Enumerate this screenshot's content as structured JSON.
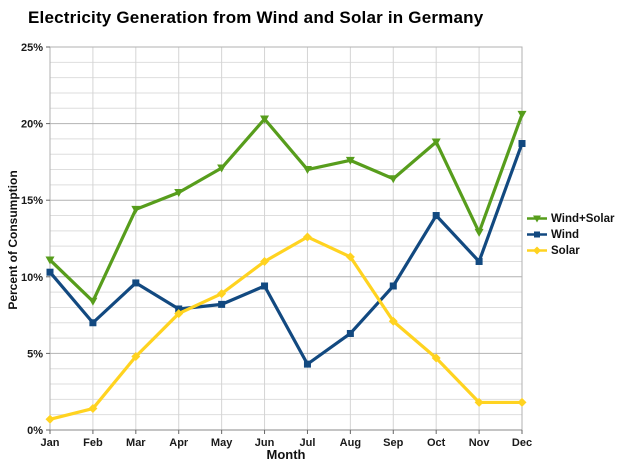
{
  "chart_data": {
    "type": "line",
    "title": "Electricity Generation from Wind and Solar in Germany",
    "xlabel": "Month",
    "ylabel": "Percent of Consumption",
    "categories": [
      "Jan",
      "Feb",
      "Mar",
      "Apr",
      "May",
      "Jun",
      "Jul",
      "Aug",
      "Sep",
      "Oct",
      "Nov",
      "Dec"
    ],
    "ylim": [
      0,
      25
    ],
    "y_major_step": 5,
    "y_minor_step": 1,
    "y_tick_labels": [
      "0%",
      "5%",
      "10%",
      "15%",
      "20%",
      "25%"
    ],
    "grid": true,
    "legend_position": "right",
    "series": [
      {
        "name": "Wind+Solar",
        "color": "#579D1C",
        "marker": "triangle-down",
        "values": [
          11.1,
          8.4,
          14.4,
          15.5,
          17.1,
          20.3,
          17.0,
          17.6,
          16.4,
          18.8,
          12.9,
          20.6
        ]
      },
      {
        "name": "Wind",
        "color": "#124980",
        "marker": "square",
        "values": [
          10.3,
          7.0,
          9.6,
          7.9,
          8.2,
          9.4,
          4.3,
          6.3,
          9.4,
          14.0,
          11.0,
          18.7
        ]
      },
      {
        "name": "Solar",
        "color": "#FFD320",
        "marker": "diamond",
        "values": [
          0.7,
          1.4,
          4.8,
          7.6,
          8.9,
          11.0,
          12.6,
          11.3,
          7.1,
          4.7,
          1.8,
          1.8
        ]
      }
    ],
    "style": {
      "minor_grid_color": "#dedede",
      "major_grid_color": "#b2b2b2",
      "vertical_grid_color": "#d4d4d4",
      "border_color": "#b2b2b2",
      "tick_color": "#666666",
      "axis_label_color": "#1a1a1a"
    }
  }
}
